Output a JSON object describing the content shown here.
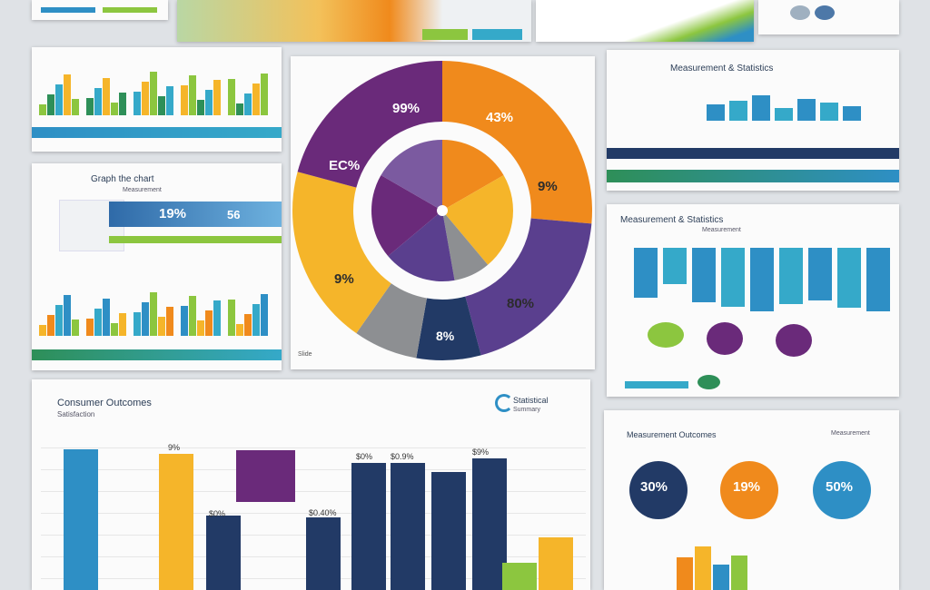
{
  "colors": {
    "navy": "#223a66",
    "blue": "#2e8fc5",
    "teal": "#35a9c9",
    "orange": "#f08a1c",
    "amber": "#f5b52a",
    "purple": "#6a2a7a",
    "violet": "#5a3f8e",
    "green": "#8cc63f",
    "darkgreen": "#2e8f58",
    "gray": "#8d8f92"
  },
  "donut": {
    "label_top_left": "99%",
    "label_top_right": "43%",
    "label_left": "EC%",
    "label_right": "9%",
    "label_bottom_left": "9%",
    "label_bottom_right": "80%",
    "label_bottom": "8%",
    "footer": "Slide"
  },
  "card_mid_left": {
    "title": "Graph the chart",
    "subtitle": "Measurement",
    "badge_a": "19%",
    "badge_b": "56"
  },
  "card_top_right": {
    "title": "Measurement & Statistics"
  },
  "card_mid_right": {
    "title": "Measurement & Statistics",
    "subtitle": "Measurement"
  },
  "bottom_chart": {
    "title": "Consumer Outcomes",
    "subtitle": "Satisfaction",
    "brand": "Statistical",
    "brand_sub": "Summary",
    "value_labels": [
      "9%",
      "$0%",
      "$0.40%",
      "$0%",
      "$0.9%",
      "$9%"
    ]
  },
  "card_bottom_right": {
    "title": "Measurement Outcomes",
    "note": "Measurement",
    "circle_1": "30%",
    "circle_2": "19%",
    "circle_3": "50%"
  }
}
